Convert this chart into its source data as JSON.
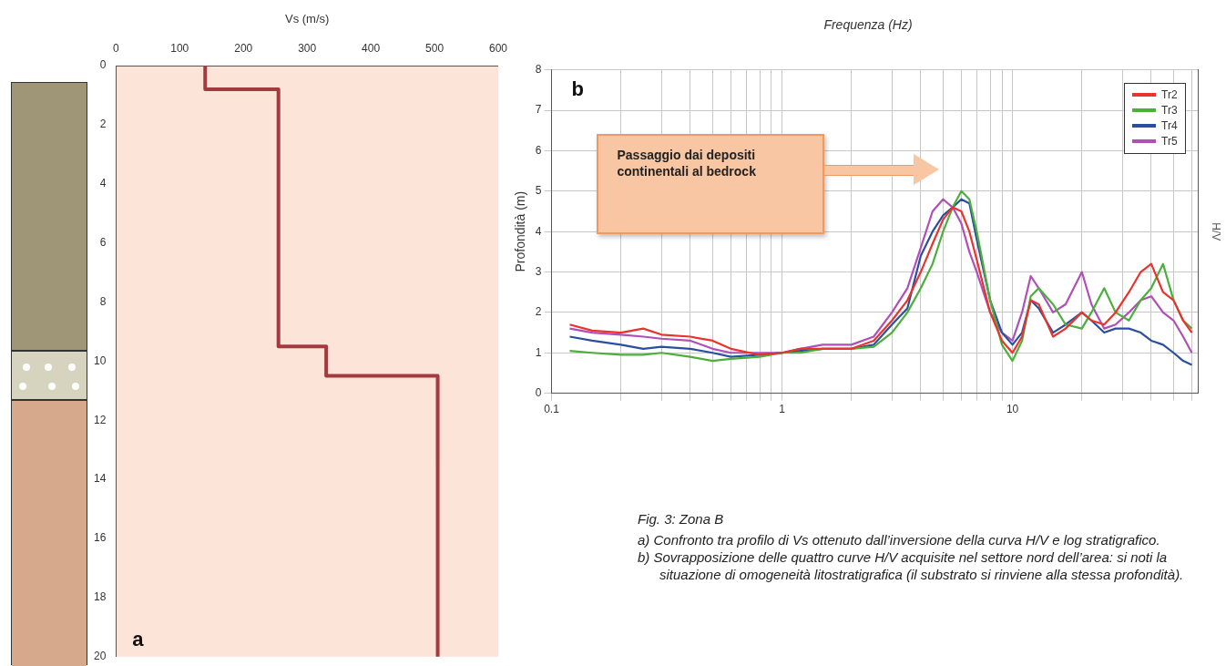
{
  "chart_data": [
    {
      "type": "line",
      "xlabel": "Vs (m/s)",
      "xlim": [
        0,
        600
      ],
      "xticks": [
        0,
        100,
        200,
        300,
        400,
        500,
        600
      ],
      "ylim": [
        20,
        0
      ],
      "yticks": [
        0,
        2,
        4,
        6,
        8,
        10,
        12,
        14,
        16,
        18,
        20
      ],
      "grid": false,
      "legend": false,
      "annotations": [
        "a"
      ],
      "series": [
        {
          "color": "#a33a3f",
          "x": [
            140,
            140,
            255,
            255,
            330,
            330,
            505,
            505
          ],
          "values": [
            0,
            0.8,
            0.8,
            9.5,
            9.5,
            10.5,
            10.5,
            20
          ]
        }
      ]
    },
    {
      "type": "line",
      "title": "Frequenza (Hz)",
      "ylabel": "Profondità (m)",
      "y2label": "H/V",
      "log": "x",
      "xlim": [
        0.1,
        64
      ],
      "xticks": [
        0.1,
        {
          "value": 0.2,
          "label": null
        },
        {
          "value": 0.3,
          "label": null
        },
        {
          "value": 0.4,
          "label": null
        },
        {
          "value": 0.5,
          "label": null
        },
        {
          "value": 0.6,
          "label": null
        },
        {
          "value": 0.7,
          "label": null
        },
        {
          "value": 0.8,
          "label": null
        },
        {
          "value": 0.9,
          "label": null
        },
        1,
        {
          "value": 2,
          "label": null
        },
        {
          "value": 3,
          "label": null
        },
        {
          "value": 4,
          "label": null
        },
        {
          "value": 5,
          "label": null
        },
        {
          "value": 6,
          "label": null
        },
        {
          "value": 7,
          "label": null
        },
        {
          "value": 8,
          "label": null
        },
        {
          "value": 9,
          "label": null
        },
        10,
        {
          "value": 20,
          "label": null
        },
        {
          "value": 30,
          "label": null
        },
        {
          "value": 40,
          "label": null
        },
        {
          "value": 50,
          "label": null
        },
        {
          "value": 60,
          "label": null
        }
      ],
      "ylim": [
        0,
        8
      ],
      "yticks": [
        0,
        1,
        2,
        3,
        4,
        5,
        6,
        7,
        8
      ],
      "grid": true,
      "legend": "top right",
      "annotations": [
        "b",
        "Passaggio dai depositi continentali al bedrock"
      ],
      "x": [
        0.12,
        0.15,
        0.2,
        0.25,
        0.3,
        0.4,
        0.5,
        0.6,
        0.8,
        1,
        1.2,
        1.5,
        2,
        2.5,
        3,
        3.5,
        4,
        4.5,
        5,
        5.5,
        6,
        6.5,
        7,
        8,
        9,
        10,
        11,
        12,
        13,
        15,
        17,
        20,
        22,
        25,
        28,
        32,
        36,
        40,
        45,
        50,
        55,
        60
      ],
      "series": [
        {
          "name": "Tr2",
          "color": "#e8332e",
          "values": [
            1.7,
            1.55,
            1.5,
            1.6,
            1.45,
            1.4,
            1.3,
            1.1,
            0.95,
            1.0,
            1.1,
            1.1,
            1.1,
            1.3,
            1.8,
            2.3,
            3.0,
            3.7,
            4.3,
            4.6,
            4.5,
            4.0,
            3.3,
            2.0,
            1.3,
            1.0,
            1.4,
            2.3,
            2.2,
            1.4,
            1.6,
            2.0,
            1.8,
            1.7,
            2.0,
            2.5,
            3.0,
            3.2,
            2.5,
            2.3,
            1.8,
            1.5
          ]
        },
        {
          "name": "Tr3",
          "color": "#4caf3c",
          "values": [
            1.05,
            1.0,
            0.95,
            0.95,
            1.0,
            0.9,
            0.8,
            0.85,
            0.9,
            1.0,
            1.0,
            1.1,
            1.1,
            1.15,
            1.5,
            2.0,
            2.6,
            3.2,
            4.0,
            4.6,
            5.0,
            4.8,
            4.0,
            2.3,
            1.2,
            0.8,
            1.3,
            2.4,
            2.6,
            2.2,
            1.7,
            1.6,
            2.0,
            2.6,
            2.0,
            1.8,
            2.3,
            2.6,
            3.2,
            2.3,
            1.8,
            1.6
          ]
        },
        {
          "name": "Tr4",
          "color": "#2b4f9e",
          "values": [
            1.4,
            1.3,
            1.2,
            1.1,
            1.15,
            1.1,
            1.0,
            0.9,
            0.95,
            1.0,
            1.05,
            1.1,
            1.1,
            1.2,
            1.7,
            2.1,
            3.4,
            4.0,
            4.4,
            4.6,
            4.8,
            4.7,
            3.8,
            2.3,
            1.5,
            1.2,
            1.5,
            2.3,
            2.1,
            1.5,
            1.7,
            2.0,
            1.8,
            1.5,
            1.6,
            1.6,
            1.5,
            1.3,
            1.2,
            1.0,
            0.8,
            0.7
          ]
        },
        {
          "name": "Tr5",
          "color": "#b04fb8",
          "values": [
            1.6,
            1.5,
            1.45,
            1.4,
            1.35,
            1.3,
            1.1,
            1.0,
            1.0,
            1.0,
            1.1,
            1.2,
            1.2,
            1.4,
            2.0,
            2.6,
            3.6,
            4.5,
            4.8,
            4.6,
            4.2,
            3.5,
            3.0,
            2.0,
            1.5,
            1.3,
            2.0,
            2.9,
            2.6,
            2.0,
            2.2,
            3.0,
            2.2,
            1.6,
            1.7,
            2.0,
            2.3,
            2.4,
            2.0,
            1.8,
            1.4,
            1.0
          ]
        }
      ]
    },
    {
      "type": "other",
      "title": "Fig. 3: Zona B",
      "annotations": [
        "a) Confronto tra profilo di Vs ottenuto dall’inversione della curva H/V e log stratigrafico.",
        "b) Sovrapposizione delle quattro curve H/V acquisite nel settore nord dell’area: si noti la situazione di omogeneità litostratigrafica (il substrato si rinviene alla stessa profondità)."
      ]
    }
  ]
}
